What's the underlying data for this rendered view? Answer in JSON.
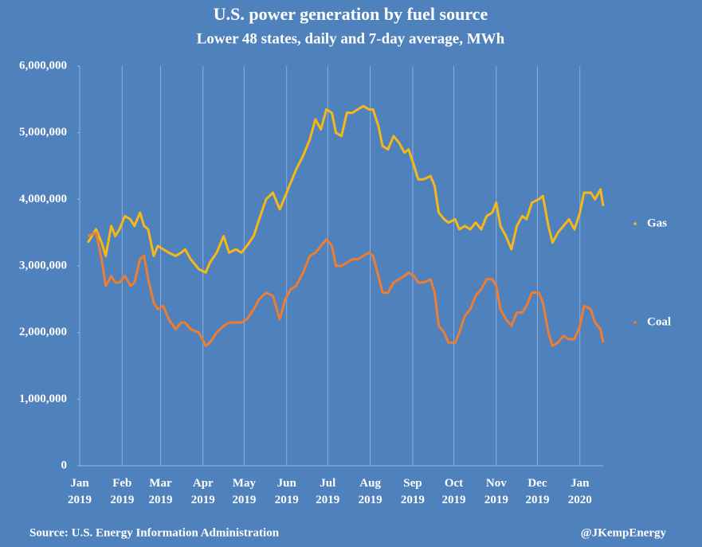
{
  "chart_data": {
    "type": "line",
    "title": "U.S. power generation by fuel source",
    "subtitle": "Lower 48 states, daily and 7-day average, MWh",
    "source": "Source: U.S. Energy Information Administration",
    "credit": "@JKempEnergy",
    "x": [
      6,
      12,
      16,
      19,
      23,
      26,
      29,
      33,
      37,
      40,
      44,
      47,
      50,
      54,
      57,
      61,
      65,
      70,
      74,
      77,
      81,
      87,
      92,
      95,
      100,
      105,
      109,
      114,
      118,
      122,
      127,
      131,
      136,
      141,
      146,
      150,
      154,
      158,
      163,
      168,
      172,
      176,
      180,
      184,
      187,
      191,
      195,
      199,
      203,
      207,
      211,
      214,
      218,
      221,
      225,
      229,
      233,
      237,
      240,
      244,
      247,
      251,
      256,
      259,
      262,
      266,
      269,
      274,
      277,
      281,
      285,
      289,
      293,
      297,
      301,
      304,
      307,
      311,
      315,
      319,
      323,
      326,
      330,
      335,
      338,
      342,
      345,
      349,
      353,
      357,
      361,
      365,
      368,
      373,
      376,
      380,
      382
    ],
    "xlim": [
      0,
      382
    ],
    "xticks": [
      {
        "value": 0,
        "label": "Jan 2019"
      },
      {
        "value": 31,
        "label": "Feb 2019"
      },
      {
        "value": 59,
        "label": "Mar 2019"
      },
      {
        "value": 90,
        "label": "Apr 2019"
      },
      {
        "value": 120,
        "label": "May 2019"
      },
      {
        "value": 151,
        "label": "Jun 2019"
      },
      {
        "value": 181,
        "label": "Jul 2019"
      },
      {
        "value": 212,
        "label": "Aug 2019"
      },
      {
        "value": 243,
        "label": "Sep 2019"
      },
      {
        "value": 273,
        "label": "Oct 2019"
      },
      {
        "value": 304,
        "label": "Nov 2019"
      },
      {
        "value": 334,
        "label": "Dec 2019"
      },
      {
        "value": 365,
        "label": "Jan 2020"
      }
    ],
    "ylim": [
      0,
      6000000
    ],
    "yticks": [
      0,
      {
        "value": 1000000,
        "label": "1,000,000"
      },
      {
        "value": 2000000,
        "label": "2,000,000"
      },
      {
        "value": 3000000,
        "label": "3,000,000"
      },
      {
        "value": 4000000,
        "label": "4,000,000"
      },
      {
        "value": 5000000,
        "label": "5,000,000"
      },
      {
        "value": 6000000,
        "label": "6,000,000"
      }
    ],
    "grid": true,
    "series": [
      {
        "name": "Gas",
        "color": "#f5b818",
        "values": [
          3350000,
          3550000,
          3350000,
          3150000,
          3600000,
          3450000,
          3550000,
          3750000,
          3700000,
          3600000,
          3800000,
          3600000,
          3550000,
          3150000,
          3300000,
          3250000,
          3200000,
          3150000,
          3200000,
          3250000,
          3100000,
          2950000,
          2900000,
          3050000,
          3200000,
          3450000,
          3200000,
          3250000,
          3200000,
          3300000,
          3450000,
          3700000,
          4000000,
          4100000,
          3850000,
          4050000,
          4250000,
          4450000,
          4650000,
          4900000,
          5200000,
          5050000,
          5350000,
          5300000,
          5000000,
          4950000,
          5300000,
          5300000,
          5350000,
          5400000,
          5350000,
          5350000,
          5100000,
          4800000,
          4750000,
          4950000,
          4850000,
          4700000,
          4750000,
          4500000,
          4300000,
          4300000,
          4350000,
          4200000,
          3800000,
          3700000,
          3650000,
          3700000,
          3550000,
          3600000,
          3550000,
          3650000,
          3550000,
          3750000,
          3800000,
          3950000,
          3600000,
          3450000,
          3250000,
          3600000,
          3750000,
          3700000,
          3950000,
          4000000,
          4050000,
          3600000,
          3350000,
          3500000,
          3600000,
          3700000,
          3550000,
          3800000,
          4100000,
          4100000,
          4000000,
          4150000,
          3900000
        ]
      },
      {
        "name": "Coal",
        "color": "#ed7d31",
        "values": [
          3450000,
          3500000,
          3100000,
          2700000,
          2850000,
          2750000,
          2750000,
          2850000,
          2700000,
          2750000,
          3100000,
          3150000,
          2800000,
          2450000,
          2350000,
          2400000,
          2200000,
          2050000,
          2150000,
          2150000,
          2050000,
          2000000,
          1800000,
          1850000,
          2000000,
          2100000,
          2150000,
          2150000,
          2150000,
          2200000,
          2350000,
          2500000,
          2600000,
          2550000,
          2200000,
          2500000,
          2650000,
          2700000,
          2900000,
          3150000,
          3200000,
          3300000,
          3400000,
          3300000,
          3000000,
          3000000,
          3050000,
          3100000,
          3100000,
          3150000,
          3200000,
          3150000,
          2850000,
          2600000,
          2600000,
          2750000,
          2800000,
          2850000,
          2900000,
          2850000,
          2750000,
          2750000,
          2800000,
          2600000,
          2100000,
          2000000,
          1850000,
          1850000,
          2000000,
          2250000,
          2350000,
          2550000,
          2650000,
          2800000,
          2800000,
          2700000,
          2350000,
          2200000,
          2100000,
          2300000,
          2300000,
          2400000,
          2600000,
          2600000,
          2450000,
          2000000,
          1800000,
          1850000,
          1950000,
          1900000,
          1900000,
          2100000,
          2400000,
          2350000,
          2150000,
          2050000,
          1850000
        ]
      }
    ]
  }
}
